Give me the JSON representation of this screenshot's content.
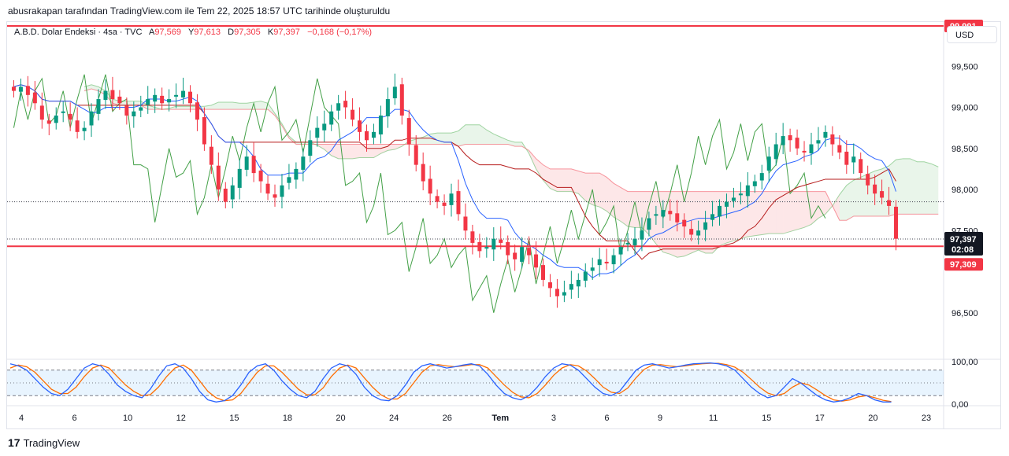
{
  "header": {
    "caption": "abusrakapan tarafından TradingView.com ile Tem 22, 2025 18:57 UTC tarihinde oluşturuldu"
  },
  "symbol": {
    "name": "A.B.D. Dolar Endeksi · 4sa · TVC",
    "open_label": "A",
    "open": "97,569",
    "high_label": "Y",
    "high": "97,613",
    "low_label": "D",
    "low": "97,305",
    "close_label": "K",
    "close": "97,397",
    "change": "−0,168 (−0,17%)"
  },
  "currency": "USD",
  "price_tags": {
    "resistance": "99,991",
    "last": "97,397",
    "countdown": "02:08",
    "support": "97,309"
  },
  "colors": {
    "up": "#089981",
    "down": "#f23645",
    "line": "#f23645",
    "tenkan": "#2962ff",
    "kijun": "#b71c1c",
    "chikou": "#43a047",
    "stoch_k": "#2962ff",
    "stoch_d": "#ff6d00"
  },
  "footer": {
    "brand": "TradingView"
  },
  "chart_data": [
    {
      "type": "candlestick",
      "y_ticks": [
        "99,500",
        "99,000",
        "98,500",
        "98,000",
        "97,500",
        "96,500"
      ],
      "x_ticks": [
        "4",
        "6",
        "10",
        "12",
        "15",
        "18",
        "20",
        "24",
        "26",
        "Tem",
        "3",
        "6",
        "9",
        "11",
        "15",
        "17",
        "20",
        "23"
      ],
      "ylim": [
        96.0,
        100.0
      ],
      "horizontal_lines": [
        99.991,
        97.309
      ],
      "last_price": 97.397,
      "close": [
        99.2,
        99.25,
        99.15,
        99.05,
        98.85,
        98.8,
        98.9,
        98.95,
        98.85,
        98.7,
        98.75,
        98.95,
        99.1,
        99.2,
        99.1,
        99.05,
        98.9,
        98.95,
        99.0,
        99.1,
        99.15,
        99.05,
        99.1,
        99.15,
        99.2,
        99.05,
        98.85,
        98.55,
        98.3,
        98.0,
        97.85,
        98.05,
        98.25,
        98.4,
        98.2,
        98.1,
        97.95,
        97.9,
        98.05,
        98.15,
        98.25,
        98.4,
        98.6,
        98.75,
        98.8,
        98.95,
        99.05,
        99.0,
        98.85,
        98.7,
        98.6,
        98.7,
        98.9,
        99.1,
        99.25,
        98.9,
        98.55,
        98.3,
        98.1,
        97.95,
        97.85,
        97.8,
        97.95,
        97.7,
        97.5,
        97.35,
        97.25,
        97.3,
        97.4,
        97.35,
        97.2,
        97.15,
        97.3,
        97.2,
        97.05,
        96.9,
        96.8,
        96.7,
        96.75,
        96.85,
        96.9,
        97.0,
        97.05,
        97.15,
        97.1,
        97.2,
        97.3,
        97.35,
        97.4,
        97.5,
        97.65,
        97.7,
        97.75,
        97.7,
        97.6,
        97.55,
        97.45,
        97.5,
        97.6,
        97.7,
        97.8,
        97.85,
        97.9,
        97.95,
        98.05,
        98.1,
        98.2,
        98.4,
        98.55,
        98.65,
        98.6,
        98.5,
        98.45,
        98.55,
        98.6,
        98.7,
        98.55,
        98.45,
        98.3,
        98.4,
        98.2,
        98.05,
        97.95,
        97.9,
        97.8,
        97.4
      ],
      "ichimoku": [
        "tenkan",
        "kijun",
        "chikou",
        "senkou_a",
        "senkou_b"
      ],
      "lower_panel": {
        "type": "line",
        "name": "Stochastic RSI",
        "y_ticks": [
          "100,00",
          "0,00"
        ],
        "ylim": [
          0,
          100
        ],
        "bands": [
          80,
          20
        ],
        "k": [
          95,
          90,
          80,
          60,
          40,
          25,
          20,
          35,
          60,
          85,
          95,
          90,
          70,
          45,
          30,
          20,
          15,
          35,
          65,
          90,
          95,
          85,
          60,
          30,
          10,
          5,
          8,
          20,
          45,
          75,
          90,
          95,
          80,
          55,
          35,
          20,
          15,
          30,
          60,
          85,
          95,
          90,
          70,
          40,
          20,
          10,
          8,
          20,
          45,
          75,
          90,
          95,
          90,
          85,
          88,
          92,
          95,
          90,
          70,
          45,
          25,
          15,
          10,
          20,
          40,
          65,
          85,
          95,
          92,
          80,
          60,
          40,
          25,
          20,
          30,
          55,
          80,
          92,
          95,
          90,
          85,
          88,
          92,
          95,
          96,
          97,
          95,
          90,
          80,
          60,
          40,
          25,
          15,
          20,
          40,
          60,
          50,
          35,
          20,
          10,
          5,
          8,
          15,
          25,
          20,
          10,
          5,
          5
        ],
        "d": [
          85,
          92,
          88,
          75,
          55,
          35,
          25,
          25,
          40,
          65,
          85,
          92,
          85,
          65,
          45,
          30,
          20,
          22,
          40,
          65,
          85,
          92,
          80,
          55,
          30,
          15,
          8,
          10,
          25,
          50,
          75,
          90,
          90,
          75,
          55,
          35,
          22,
          22,
          38,
          65,
          85,
          92,
          85,
          62,
          40,
          22,
          12,
          12,
          25,
          50,
          75,
          90,
          93,
          90,
          88,
          90,
          93,
          93,
          85,
          65,
          45,
          28,
          17,
          15,
          25,
          45,
          68,
          85,
          93,
          90,
          78,
          60,
          40,
          28,
          25,
          38,
          62,
          82,
          92,
          93,
          90,
          88,
          90,
          93,
          95,
          96,
          96,
          93,
          87,
          75,
          58,
          40,
          26,
          20,
          25,
          40,
          50,
          45,
          33,
          20,
          10,
          7,
          10,
          17,
          20,
          15,
          9,
          6
        ]
      }
    }
  ]
}
